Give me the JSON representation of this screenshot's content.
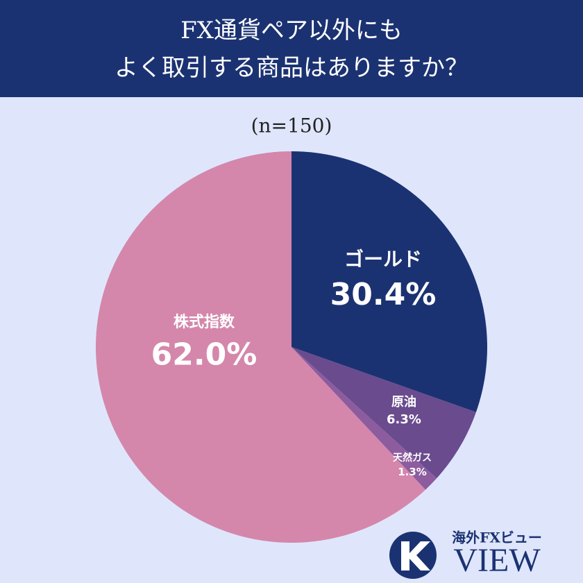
{
  "chart_data": {
    "type": "pie",
    "title": [
      "FX通貨ペア以外にも",
      "よく取引する商品はありますか？"
    ],
    "subtitle": "(n=150)",
    "categories": [
      "ゴールド",
      "原油",
      "天然ガス",
      "株式指数"
    ],
    "values": [
      30.4,
      6.3,
      1.3,
      62.0
    ],
    "value_labels": [
      "30.4%",
      "6.3%",
      "1.3%",
      "62.0%"
    ],
    "colors": [
      "#1b3272",
      "#6a4b8e",
      "#8c5c9f",
      "#d487ab"
    ]
  },
  "logo": {
    "small": "海外FXビュー",
    "large": "VIEW"
  }
}
